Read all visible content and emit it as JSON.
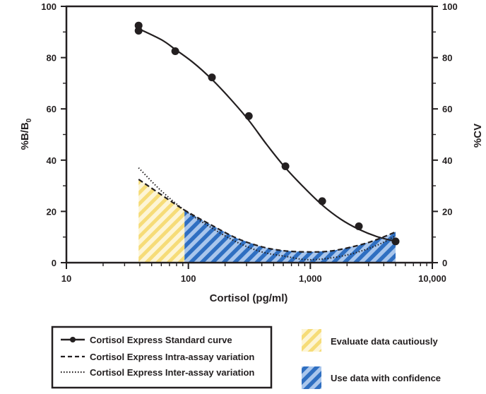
{
  "chart_data": {
    "type": "line",
    "xscale": "log",
    "xlim": [
      10,
      10000
    ],
    "ylim": [
      0,
      100
    ],
    "y2lim": [
      0,
      100
    ],
    "xlabel": "Cortisol (pg/ml)",
    "ylabel_main": "%B/B",
    "ylabel_sub": "0",
    "y2label": "%CV",
    "x_ticks": [
      {
        "value": 10,
        "label": "10"
      },
      {
        "value": 100,
        "label": "100"
      },
      {
        "value": 1000,
        "label": "1,000"
      },
      {
        "value": 10000,
        "label": "10,000"
      }
    ],
    "y_ticks": [
      0,
      20,
      40,
      60,
      80,
      100
    ],
    "y2_ticks": [
      0,
      20,
      40,
      60,
      80,
      100
    ],
    "series": [
      {
        "name": "Cortisol Express Standard curve",
        "style": "solid-markers",
        "points": [
          [
            39.1,
            92.5
          ],
          [
            39.1,
            90.5
          ],
          [
            78.1,
            82.5
          ],
          [
            156,
            72.3
          ],
          [
            313,
            57.2
          ],
          [
            625,
            37.6
          ],
          [
            1250,
            24.0
          ],
          [
            2500,
            14.2
          ],
          [
            5000,
            8.3
          ]
        ],
        "curve": [
          [
            39.1,
            91.3
          ],
          [
            60,
            87.0
          ],
          [
            78.1,
            83.2
          ],
          [
            110,
            78.0
          ],
          [
            156,
            71.5
          ],
          [
            220,
            64.0
          ],
          [
            313,
            55.5
          ],
          [
            440,
            46.0
          ],
          [
            625,
            37.0
          ],
          [
            880,
            29.5
          ],
          [
            1250,
            22.5
          ],
          [
            1770,
            17.0
          ],
          [
            2500,
            13.0
          ],
          [
            3500,
            10.2
          ],
          [
            5000,
            8.3
          ]
        ]
      },
      {
        "name": "Cortisol Express Intra-assay variation",
        "style": "dashed",
        "points": [
          [
            39.1,
            32.5
          ],
          [
            60,
            26.5
          ],
          [
            93,
            20.5
          ],
          [
            150,
            15.0
          ],
          [
            250,
            9.5
          ],
          [
            400,
            6.2
          ],
          [
            620,
            4.6
          ],
          [
            1000,
            4.2
          ],
          [
            1500,
            4.6
          ],
          [
            2500,
            6.8
          ],
          [
            3500,
            9.0
          ],
          [
            5000,
            12.0
          ]
        ]
      },
      {
        "name": "Cortisol Express Inter-assay variation",
        "style": "dotted",
        "points": [
          [
            39.1,
            37.0
          ],
          [
            60,
            28.0
          ],
          [
            93,
            20.5
          ],
          [
            150,
            14.0
          ],
          [
            250,
            8.0
          ],
          [
            400,
            4.2
          ],
          [
            620,
            2.5
          ],
          [
            900,
            1.2
          ],
          [
            1300,
            1.5
          ],
          [
            2000,
            3.0
          ],
          [
            3000,
            5.5
          ],
          [
            4000,
            8.0
          ],
          [
            5000,
            10.5
          ]
        ]
      }
    ],
    "regions": [
      {
        "name": "Evaluate data cautiously",
        "x": [
          39.1,
          93
        ],
        "color": "#f6dc78"
      },
      {
        "name": "Use data with confidence",
        "x": [
          93,
          5000
        ],
        "color": "#2f6fc1"
      }
    ],
    "legend": {
      "lines": [
        {
          "label": "Cortisol Express Standard curve",
          "style": "solid-markers"
        },
        {
          "label": "Cortisol Express Intra-assay variation",
          "style": "dashed"
        },
        {
          "label": "Cortisol Express Inter-assay variation",
          "style": "dotted"
        }
      ],
      "swatches": [
        {
          "label": "Evaluate data cautiously",
          "color": "#f6dc78"
        },
        {
          "label": "Use data with confidence",
          "color": "#2f6fc1"
        }
      ]
    }
  }
}
